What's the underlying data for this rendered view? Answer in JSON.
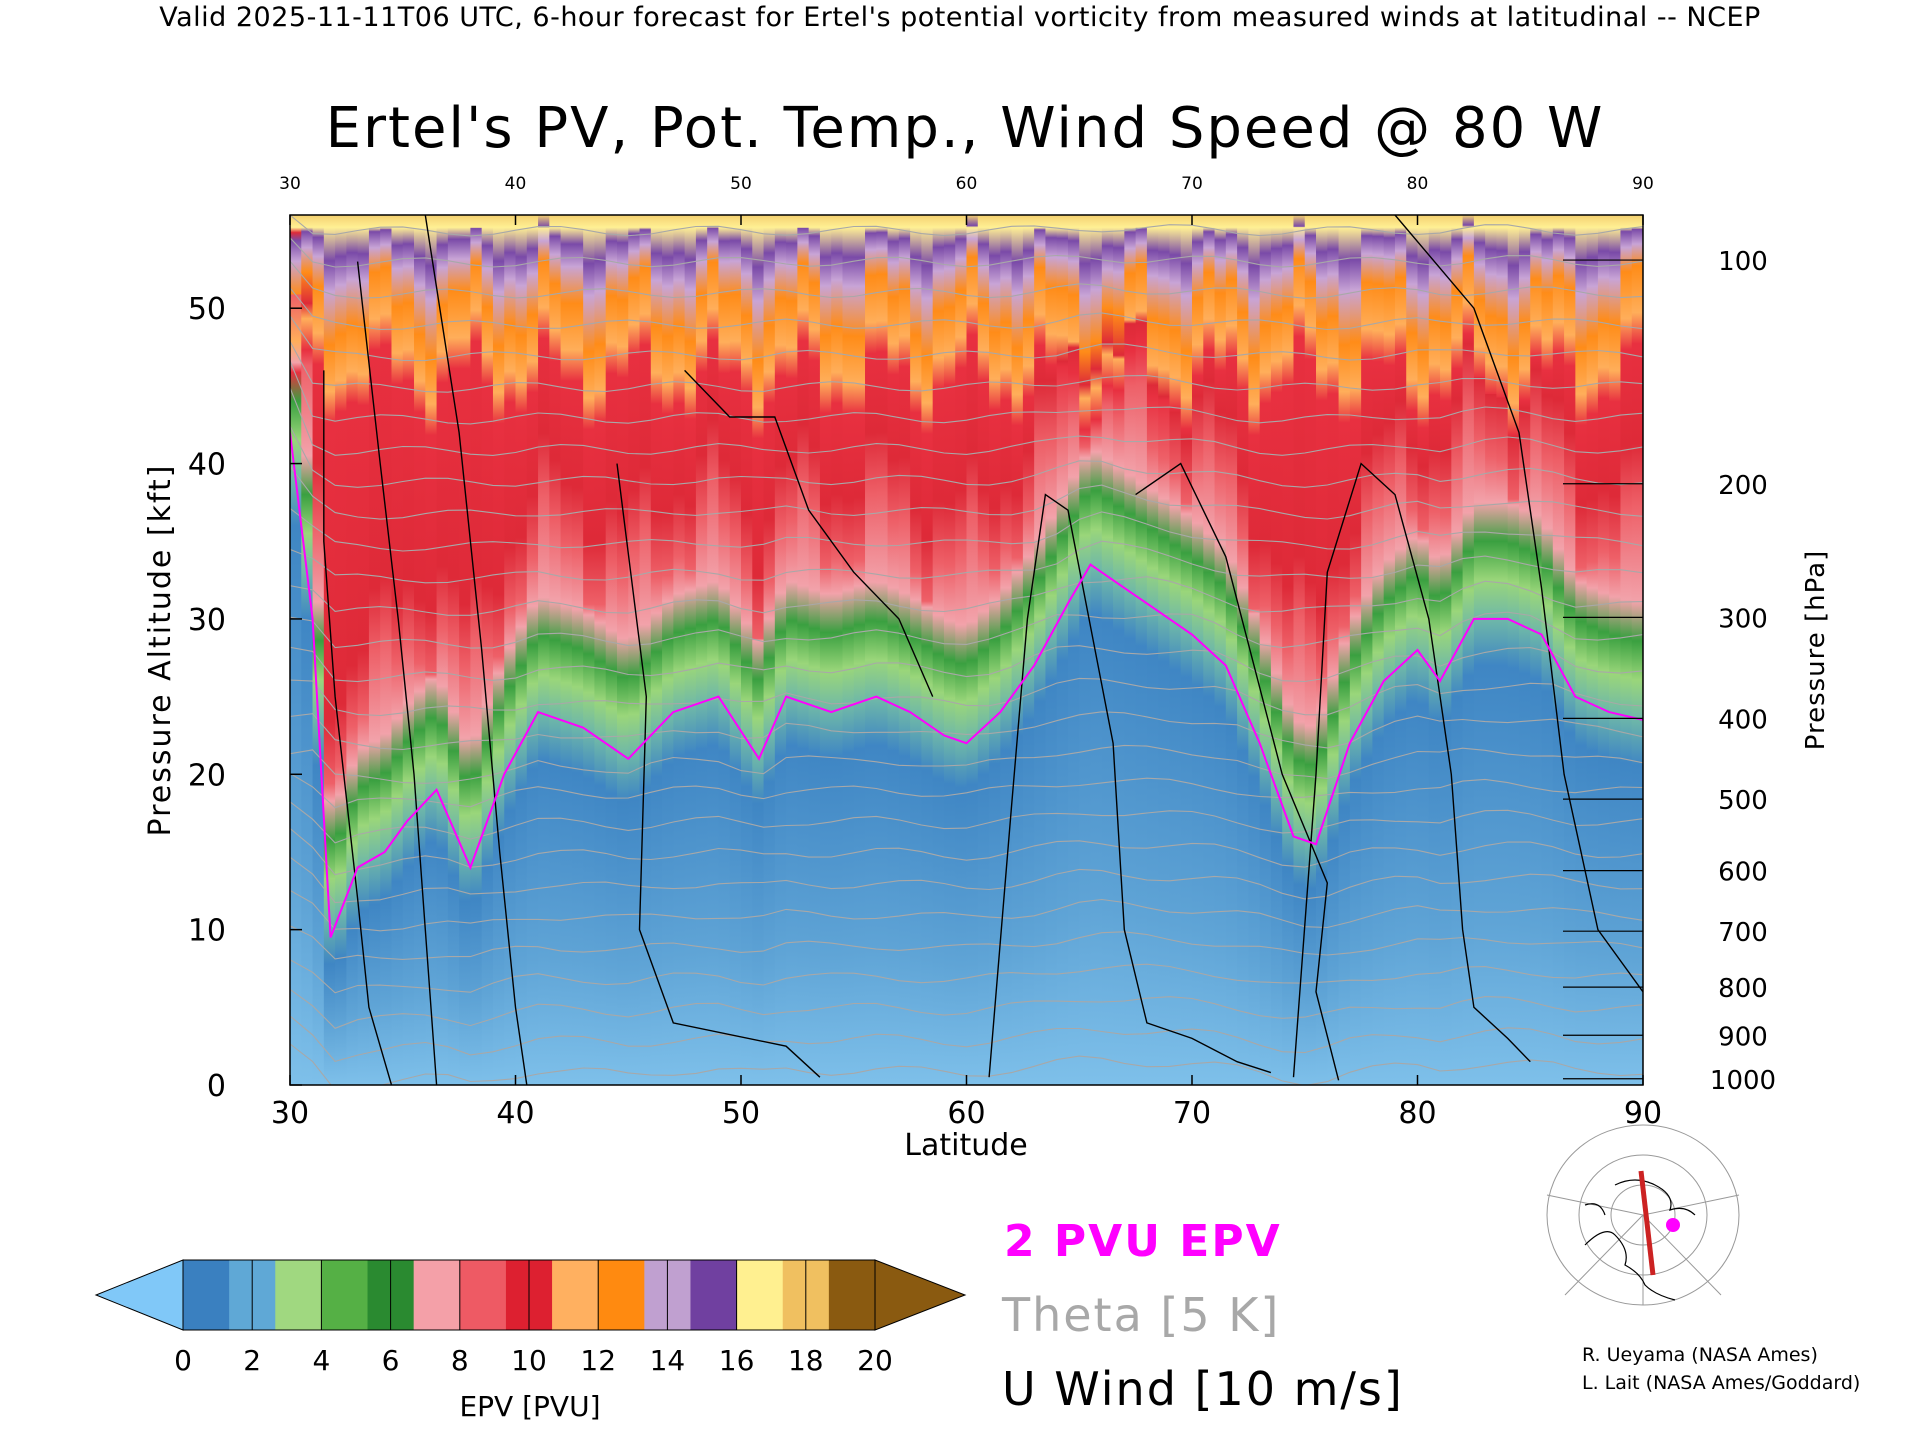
{
  "top_caption": "Valid 2025-11-11T06 UTC, 6-hour forecast for Ertel's potential vorticity from measured winds at latitudinal -- NCEP",
  "colors": {
    "pv_contour": "#ff00ff",
    "theta_contour": "#a8a8a8",
    "u_contour": "#000000",
    "section_line": "#cc2222",
    "section_marker": "#ff00ff"
  },
  "chart_data": {
    "type": "heatmap",
    "title": "Ertel's PV, Pot. Temp., Wind Speed @ 80 W",
    "xlabel": "Latitude",
    "ylabel": "Pressure Altitude [kft]",
    "y2label": "Pressure [hPa]",
    "xlim": [
      30,
      90
    ],
    "ylim": [
      0,
      56
    ],
    "x_ticks": [
      30,
      40,
      50,
      60,
      70,
      80,
      90
    ],
    "x_top_ticks": [
      30,
      40,
      50,
      60,
      70,
      80,
      90
    ],
    "y_ticks": [
      0,
      10,
      20,
      30,
      40,
      50
    ],
    "pressure_ticks": [
      {
        "hpa": 1000,
        "kft": 0.4
      },
      {
        "hpa": 900,
        "kft": 3.2
      },
      {
        "hpa": 800,
        "kft": 6.3
      },
      {
        "hpa": 700,
        "kft": 9.9
      },
      {
        "hpa": 600,
        "kft": 13.8
      },
      {
        "hpa": 500,
        "kft": 18.4
      },
      {
        "hpa": 400,
        "kft": 23.6
      },
      {
        "hpa": 300,
        "kft": 30.1
      },
      {
        "hpa": 200,
        "kft": 38.7
      },
      {
        "hpa": 100,
        "kft": 53.1
      }
    ],
    "colorbar": {
      "label": "EPV [PVU]",
      "ticks": [
        0,
        2,
        4,
        6,
        8,
        10,
        12,
        14,
        16,
        18,
        20
      ],
      "stops": [
        "#3a80c0",
        "#5fa8d6",
        "#a0d880",
        "#55b045",
        "#2a8a30",
        "#f4a0a8",
        "#ee5a64",
        "#dd2030",
        "#ffb060",
        "#ff8a10",
        "#c0a0d0",
        "#7040a0",
        "#fff090",
        "#f0c060",
        "#8a5a10"
      ],
      "under_color": "#80c8f8",
      "over_color": "#8a5a10"
    },
    "fields": {
      "tropopause_2pvu_kft": [
        {
          "lat": 30.0,
          "kft": 42
        },
        {
          "lat": 31.0,
          "kft": 30
        },
        {
          "lat": 31.8,
          "kft": 9.5
        },
        {
          "lat": 33.0,
          "kft": 14
        },
        {
          "lat": 34.2,
          "kft": 15
        },
        {
          "lat": 35.2,
          "kft": 17
        },
        {
          "lat": 36.5,
          "kft": 19
        },
        {
          "lat": 38.0,
          "kft": 14
        },
        {
          "lat": 39.5,
          "kft": 20
        },
        {
          "lat": 41.0,
          "kft": 24
        },
        {
          "lat": 43.0,
          "kft": 23
        },
        {
          "lat": 45.0,
          "kft": 21
        },
        {
          "lat": 47.0,
          "kft": 24
        },
        {
          "lat": 49.0,
          "kft": 25
        },
        {
          "lat": 50.8,
          "kft": 21
        },
        {
          "lat": 52.0,
          "kft": 25
        },
        {
          "lat": 54.0,
          "kft": 24
        },
        {
          "lat": 56.0,
          "kft": 25
        },
        {
          "lat": 57.5,
          "kft": 24
        },
        {
          "lat": 59.0,
          "kft": 22.5
        },
        {
          "lat": 60.0,
          "kft": 22
        },
        {
          "lat": 61.5,
          "kft": 24
        },
        {
          "lat": 63.0,
          "kft": 27
        },
        {
          "lat": 64.5,
          "kft": 31
        },
        {
          "lat": 65.5,
          "kft": 33.5
        },
        {
          "lat": 67.0,
          "kft": 32
        },
        {
          "lat": 68.5,
          "kft": 30.5
        },
        {
          "lat": 70.0,
          "kft": 29
        },
        {
          "lat": 71.5,
          "kft": 27
        },
        {
          "lat": 73.0,
          "kft": 22
        },
        {
          "lat": 74.5,
          "kft": 16
        },
        {
          "lat": 75.5,
          "kft": 15.5
        },
        {
          "lat": 77.0,
          "kft": 22
        },
        {
          "lat": 78.5,
          "kft": 26
        },
        {
          "lat": 80.0,
          "kft": 28
        },
        {
          "lat": 81.0,
          "kft": 26
        },
        {
          "lat": 82.5,
          "kft": 30
        },
        {
          "lat": 84.0,
          "kft": 30
        },
        {
          "lat": 85.5,
          "kft": 29
        },
        {
          "lat": 87.0,
          "kft": 25
        },
        {
          "lat": 88.5,
          "kft": 24
        },
        {
          "lat": 90.0,
          "kft": 23.5
        }
      ],
      "uwind_contours": [
        {
          "value": 10,
          "points": [
            [
              31.5,
              46
            ],
            [
              31.5,
              35
            ],
            [
              32,
              25
            ],
            [
              33,
              12
            ],
            [
              33.5,
              5
            ],
            [
              34.5,
              0
            ]
          ]
        },
        {
          "value": 10,
          "points": [
            [
              33,
              53
            ],
            [
              34,
              40
            ],
            [
              34.8,
              30
            ],
            [
              35.5,
              20
            ],
            [
              36,
              10
            ],
            [
              36.5,
              0
            ]
          ]
        },
        {
          "value": 0,
          "points": [
            [
              36,
              56
            ],
            [
              37.5,
              42
            ],
            [
              38.5,
              28
            ],
            [
              39.3,
              15
            ],
            [
              40,
              5
            ],
            [
              40.5,
              0
            ]
          ]
        },
        {
          "value": 10,
          "points": [
            [
              44.5,
              40
            ],
            [
              45.8,
              25
            ],
            [
              45.5,
              10
            ],
            [
              47,
              4
            ],
            [
              52,
              2.5
            ],
            [
              53.5,
              0.5
            ]
          ]
        },
        {
          "value": 0,
          "points": [
            [
              47.5,
              46
            ],
            [
              49.5,
              43
            ],
            [
              51.5,
              43
            ],
            [
              53,
              37
            ],
            [
              55,
              33
            ],
            [
              57,
              30
            ],
            [
              58.5,
              25
            ]
          ]
        },
        {
          "value": 0,
          "points": [
            [
              61,
              0.5
            ],
            [
              62,
              18
            ],
            [
              62.7,
              30
            ],
            [
              63.5,
              38
            ],
            [
              64.5,
              37
            ],
            [
              66.5,
              22
            ],
            [
              67,
              10
            ],
            [
              68,
              4
            ],
            [
              70,
              3
            ],
            [
              72,
              1.5
            ],
            [
              73.5,
              0.8
            ]
          ]
        },
        {
          "value": 10,
          "points": [
            [
              67.5,
              38
            ],
            [
              69.5,
              40
            ],
            [
              71.5,
              34
            ],
            [
              74,
              20
            ],
            [
              76,
              13
            ],
            [
              75.5,
              6
            ],
            [
              76.5,
              0.3
            ]
          ]
        },
        {
          "value": 10,
          "points": [
            [
              74.5,
              0.5
            ],
            [
              75.5,
              20
            ],
            [
              76,
              33
            ],
            [
              77.5,
              40
            ],
            [
              79,
              38
            ],
            [
              80.5,
              30
            ],
            [
              81.5,
              20
            ],
            [
              82,
              10
            ],
            [
              82.5,
              5
            ],
            [
              84,
              3
            ],
            [
              85,
              1.5
            ]
          ]
        },
        {
          "value": 10,
          "points": [
            [
              79,
              56
            ],
            [
              82.5,
              50
            ],
            [
              84.5,
              42
            ],
            [
              85.5,
              32
            ],
            [
              86.5,
              20
            ],
            [
              88,
              10
            ],
            [
              90,
              6
            ]
          ]
        }
      ]
    }
  },
  "legend": {
    "pv_label": "2 PVU EPV",
    "theta_label": "Theta [5 K]",
    "u_label": "U Wind [10 m/s]"
  },
  "credits": [
    "R. Ueyama (NASA Ames)",
    "L. Lait (NASA Ames/Goddard)"
  ]
}
